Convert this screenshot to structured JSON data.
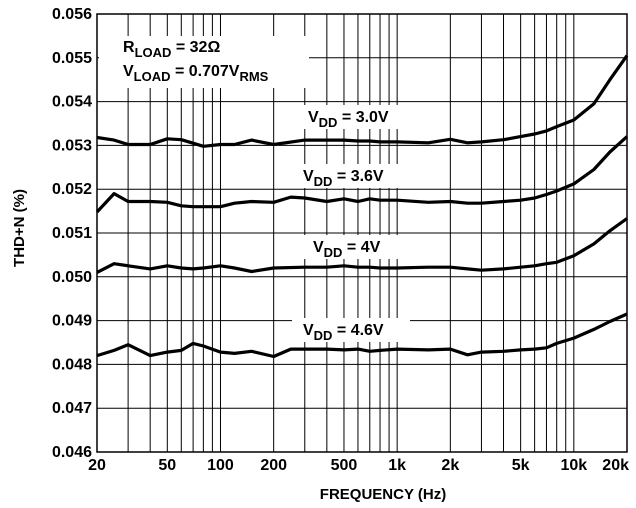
{
  "chart_data": {
    "type": "line",
    "xlabel": "FREQUENCY (Hz)",
    "ylabel": "THD+N (%)",
    "xscale": "log",
    "xlim": [
      20,
      20000
    ],
    "ylim": [
      0.046,
      0.056
    ],
    "grid": true,
    "x_ticks": [
      20,
      50,
      100,
      200,
      500,
      1000,
      2000,
      5000,
      10000,
      20000
    ],
    "x_tick_labels": [
      "20",
      "50",
      "100",
      "200",
      "500",
      "1k",
      "2k",
      "5k",
      "10k",
      "20k"
    ],
    "y_ticks": [
      0.046,
      0.047,
      0.048,
      0.049,
      0.05,
      0.051,
      0.052,
      0.053,
      0.054,
      0.055,
      0.056
    ],
    "y_tick_labels": [
      "0.046",
      "0.047",
      "0.048",
      "0.049",
      "0.050",
      "0.051",
      "0.052",
      "0.053",
      "0.054",
      "0.055",
      "0.056"
    ],
    "conditions": {
      "line1": {
        "main": "R",
        "sub": "LOAD",
        "rest": " = 32Ω"
      },
      "line2": {
        "main": "V",
        "sub": "LOAD",
        "rest": " = 0.707V",
        "sub2": "RMS"
      }
    },
    "series": [
      {
        "label": {
          "main": "V",
          "sub": "DD",
          "rest": " = 3.0V"
        },
        "x": [
          20,
          25,
          30,
          40,
          50,
          60,
          70,
          80,
          100,
          120,
          150,
          200,
          300,
          400,
          500,
          600,
          700,
          800,
          1000,
          1500,
          2000,
          2500,
          3000,
          4000,
          5000,
          6000,
          7000,
          8000,
          10000,
          13000,
          16000,
          20000
        ],
        "y": [
          0.05318,
          0.05312,
          0.05302,
          0.05302,
          0.05315,
          0.05313,
          0.05305,
          0.05298,
          0.05302,
          0.05302,
          0.05312,
          0.05302,
          0.05312,
          0.05312,
          0.05312,
          0.0531,
          0.0531,
          0.05308,
          0.05308,
          0.05306,
          0.05314,
          0.05306,
          0.05308,
          0.05313,
          0.0532,
          0.05326,
          0.05333,
          0.05343,
          0.05358,
          0.05395,
          0.0545,
          0.05505
        ]
      },
      {
        "label": {
          "main": "V",
          "sub": "DD",
          "rest": " = 3.6V"
        },
        "x": [
          20,
          25,
          30,
          40,
          50,
          60,
          70,
          80,
          100,
          120,
          150,
          200,
          250,
          300,
          400,
          500,
          600,
          700,
          800,
          1000,
          1500,
          2000,
          2500,
          3000,
          4000,
          5000,
          6000,
          7000,
          8000,
          10000,
          13000,
          16000,
          20000
        ],
        "y": [
          0.05148,
          0.0519,
          0.05172,
          0.05172,
          0.0517,
          0.05162,
          0.0516,
          0.0516,
          0.0516,
          0.05168,
          0.05172,
          0.0517,
          0.05182,
          0.0518,
          0.05172,
          0.05178,
          0.05172,
          0.05178,
          0.05175,
          0.05175,
          0.0517,
          0.05172,
          0.05168,
          0.05168,
          0.05172,
          0.05175,
          0.0518,
          0.05188,
          0.05196,
          0.05212,
          0.05245,
          0.05285,
          0.0532
        ]
      },
      {
        "label": {
          "main": "V",
          "sub": "DD",
          "rest": " = 4V"
        },
        "x": [
          20,
          25,
          30,
          40,
          50,
          60,
          70,
          80,
          100,
          120,
          150,
          200,
          300,
          400,
          500,
          600,
          700,
          800,
          1000,
          1500,
          2000,
          2500,
          3000,
          4000,
          5000,
          6000,
          7000,
          8000,
          10000,
          13000,
          16000,
          20000
        ],
        "y": [
          0.0501,
          0.0503,
          0.05025,
          0.05018,
          0.05025,
          0.0502,
          0.05018,
          0.0502,
          0.05025,
          0.0502,
          0.05012,
          0.0502,
          0.05022,
          0.05022,
          0.05025,
          0.05022,
          0.05022,
          0.0502,
          0.0502,
          0.05022,
          0.05022,
          0.05018,
          0.05015,
          0.05018,
          0.05022,
          0.05025,
          0.0503,
          0.05033,
          0.05048,
          0.05075,
          0.05105,
          0.05133
        ]
      },
      {
        "label": {
          "main": "V",
          "sub": "DD",
          "rest": " = 4.6V"
        },
        "x": [
          20,
          25,
          30,
          40,
          50,
          60,
          70,
          80,
          100,
          120,
          150,
          200,
          250,
          300,
          400,
          500,
          600,
          700,
          800,
          1000,
          1500,
          2000,
          2500,
          3000,
          4000,
          5000,
          6000,
          7000,
          8000,
          10000,
          13000,
          16000,
          20000
        ],
        "y": [
          0.0482,
          0.04832,
          0.04845,
          0.0482,
          0.04828,
          0.04832,
          0.04848,
          0.04842,
          0.04828,
          0.04825,
          0.0483,
          0.04818,
          0.04835,
          0.04835,
          0.04835,
          0.04833,
          0.04835,
          0.0483,
          0.04832,
          0.04835,
          0.04833,
          0.04835,
          0.04822,
          0.04828,
          0.0483,
          0.04833,
          0.04835,
          0.04838,
          0.04848,
          0.0486,
          0.0488,
          0.04898,
          0.04915
        ]
      }
    ]
  }
}
